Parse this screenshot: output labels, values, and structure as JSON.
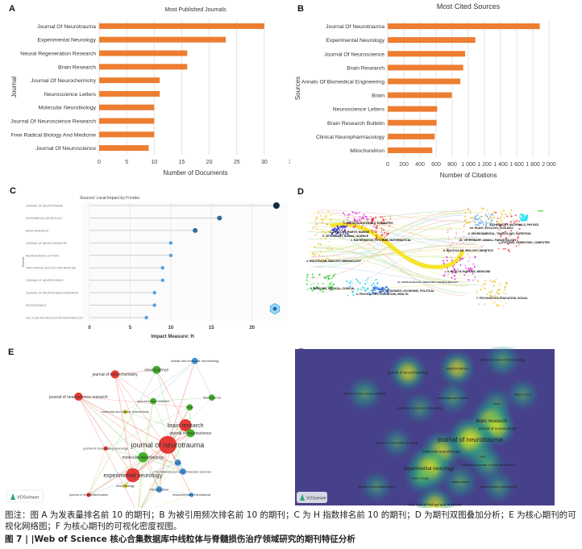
{
  "colors": {
    "bar_orange": "#ed7d31",
    "lollipop_dark": "#132b43",
    "lollipop_mid": "#2d6aa0",
    "lollipop_light": "#56a0dd",
    "cluster_red": "#e53935",
    "cluster_green": "#43b02a",
    "cluster_blue": "#3f8fd8",
    "cluster_yellow": "#c8cc1e",
    "density_bg": "#46418a",
    "density_peak": "#f5e61d"
  },
  "chart_data": [
    {
      "id": "A",
      "panel_label": "A",
      "type": "bar",
      "orientation": "horizontal",
      "title": "Most Published Journals",
      "xlabel": "Number of Documents",
      "ylabel": "Journal",
      "xlim": [
        0,
        35
      ],
      "xticks": [
        "0",
        "5",
        "10",
        "15",
        "20",
        "25",
        "30",
        "35"
      ],
      "grid": true,
      "categories": [
        "Journal Of Neurotrauma",
        "Experimental Neurology",
        "Neural Regeneration Research",
        "Brain Research",
        "Journal Of Neurochemistry",
        "Neuroscience Letters",
        "Molecular Neurobiology",
        "Journal Of Neuroscience Research",
        "Free Radical Biology And Medicine",
        "Journal Of Neuroscience"
      ],
      "values": [
        30,
        23,
        16,
        16,
        11,
        11,
        10,
        10,
        10,
        9
      ]
    },
    {
      "id": "B",
      "panel_label": "B",
      "type": "bar",
      "orientation": "horizontal",
      "title": "Most Cited Sources",
      "xlabel": "Number of Citations",
      "ylabel": "Sources",
      "xlim": [
        0,
        2000
      ],
      "xticks": [
        "0",
        "200",
        "400",
        "600",
        "800",
        "1 000",
        "1 200",
        "1 400",
        "1 600",
        "1 800",
        "2 000"
      ],
      "grid": true,
      "categories": [
        "Journal Of Neurotrauma",
        "Experimental Neurology",
        "Journal Of Neuroscience",
        "Brain Research",
        "Annals Of Biomedical Engineering",
        "Brain",
        "Neuroscience Letters",
        "Brain Research Bulletin",
        "Clinical Neuropharmacology",
        "Mitochondrion"
      ],
      "values": [
        1886,
        1086,
        960,
        936,
        900,
        795,
        613,
        606,
        583,
        553
      ]
    },
    {
      "id": "C",
      "panel_label": "C",
      "type": "lollipop",
      "title": "Sources' Local Impact by H index",
      "xlabel": "Impact Measure: H",
      "ylabel": "Sources",
      "xlim": [
        0,
        24
      ],
      "xticks": [
        "0",
        "5",
        "10",
        "15",
        "20"
      ],
      "grid": true,
      "categories": [
        "JOURNAL OF NEUROTRAUMA",
        "EXPERIMENTAL NEUROLOGY",
        "BRAIN RESEARCH",
        "JOURNAL OF NEUROCHEMISTRY",
        "NEUROSCIENCE LETTERS",
        "FREE RADICAL BIOLOGY AND MEDICINE",
        "JOURNAL OF NEUROSCIENCE",
        "JOURNAL OF NEUROSCIENCE RESEARCH",
        "NEUROSIGNALS",
        "CELLULAR AND MOLECULAR NEUROBIOLOGY"
      ],
      "values": [
        23,
        16,
        13,
        10,
        10,
        9,
        9,
        8,
        8,
        7
      ]
    },
    {
      "id": "D",
      "panel_label": "D",
      "type": "dual-map overlay",
      "left_clusters": [
        {
          "label": "1. PHYSICS, MATERIALS, CHEMISTRY",
          "color": "#e020e0"
        },
        {
          "label": "3. ECOLOGY, EARTH, MARINE",
          "color": "#2020d0"
        },
        {
          "label": "5. VETERINARY, ANIMAL, SCIENCE",
          "color": "#8844dd"
        },
        {
          "label": "1. MATHEMATICS, SYSTEMS, MATHEMATICAL",
          "color": "#ee3333"
        },
        {
          "label": "4. MOLECULAR, BIOLOGY, IMMUNOLOGY",
          "color": "#f0c020"
        },
        {
          "label": "6. MEDICINE, MEDICAL, CLINICAL",
          "color": "#20cc20"
        },
        {
          "label": "10. ECONOMICS, ECONOMIC, POLITICAL",
          "color": "#2266dd"
        },
        {
          "label": "6. PSYCHOLOGY, EDUCATION, HEALTH",
          "color": "#22ccee"
        }
      ],
      "right_clusters": [
        {
          "label": "4. CHEMISTRY, MATERIALS, PHYSICS",
          "color": "#f0c020"
        },
        {
          "label": "10. PLANT, ECOLOGY, ZOOLOGY",
          "color": "#2266dd"
        },
        {
          "label": "2. ENVIRONMENTAL, TOXICOLOGY, NUTRITION",
          "color": "#22cc22"
        },
        {
          "label": "11. VETERINARY, ANIMAL, PARASITOLOGY",
          "color": "#cc8833"
        },
        {
          "label": "1. SYSTEMS, COMPUTING, COMPUTER",
          "color": "#ee3333"
        },
        {
          "label": "8. MOLECULAR, BIOLOGY, GENETICS",
          "color": "#f0a020"
        },
        {
          "label": "5. HEALTH, NURSING, MEDICINE",
          "color": "#e020e0"
        },
        {
          "label": "7. PSYCHOLOGY, EDUCATION, SOCIAL",
          "color": "#e0c020"
        }
      ],
      "center_label": "10. OPHTHALMOLOGY, ONCOLOGY, OPHTHALMOLOGY"
    },
    {
      "id": "E",
      "panel_label": "E",
      "type": "network",
      "watermark": "VOSviewer",
      "nodes": [
        {
          "label": "cellular and molecular neurobiology",
          "cluster": "blue",
          "weight": 2
        },
        {
          "label": "journal of neurochemistry",
          "cluster": "red",
          "weight": 3
        },
        {
          "label": "neuroscience",
          "cluster": "green",
          "weight": 3
        },
        {
          "label": "journal of neuroscience research",
          "cluster": "red",
          "weight": 3
        },
        {
          "label": "neurochemical research",
          "cluster": "green",
          "weight": 2
        },
        {
          "label": "faseb journal",
          "cluster": "green",
          "weight": 2
        },
        {
          "label": "brain",
          "cluster": "green",
          "weight": 2
        },
        {
          "label": "molecular and cellular biochemistry",
          "cluster": "yellow",
          "weight": 1
        },
        {
          "label": "brain research",
          "cluster": "red",
          "weight": 5
        },
        {
          "label": "journal of neuroscience",
          "cluster": "green",
          "weight": 3
        },
        {
          "label": "journal of neurotrauma",
          "cluster": "red",
          "weight": 8
        },
        {
          "label": "journal of comparative neurology",
          "cluster": "red",
          "weight": 1
        },
        {
          "label": "molecular neurobiology",
          "cluster": "green",
          "weight": 4
        },
        {
          "label": "experimental neurology",
          "cluster": "red",
          "weight": 6
        },
        {
          "label": "cells",
          "cluster": "blue",
          "weight": 2
        },
        {
          "label": "redox biology",
          "cluster": "yellow",
          "weight": 1
        },
        {
          "label": "international journal of molecular sciences",
          "cluster": "blue",
          "weight": 2
        },
        {
          "label": "mitochondrion",
          "cluster": "blue",
          "weight": 2
        },
        {
          "label": "journal of neuroinflammation",
          "cluster": "red",
          "weight": 1
        },
        {
          "label": "neurochemistry international",
          "cluster": "blue",
          "weight": 1
        },
        {
          "label": "free radical biology and medicine",
          "cluster": "yellow",
          "weight": 3
        }
      ]
    },
    {
      "id": "F",
      "panel_label": "F",
      "type": "density",
      "watermark": "VOSviewer",
      "nodes": [
        {
          "label": "cellular and molecular neurobiology",
          "density": 0.55
        },
        {
          "label": "journal of neurochemistry",
          "density": 0.65
        },
        {
          "label": "neuroscience",
          "density": 0.6
        },
        {
          "label": "journal of neuroscience research",
          "density": 0.55
        },
        {
          "label": "neurochemical research",
          "density": 0.45
        },
        {
          "label": "faseb journal",
          "density": 0.45
        },
        {
          "label": "brain",
          "density": 0.45
        },
        {
          "label": "molecular and cellular biochemistry",
          "density": 0.4
        },
        {
          "label": "brain research",
          "density": 0.85
        },
        {
          "label": "journal of neuroscience",
          "density": 0.6
        },
        {
          "label": "journal of neurotrauma",
          "density": 1.0
        },
        {
          "label": "journal of comparative neurology",
          "density": 0.4
        },
        {
          "label": "molecular neurobiology",
          "density": 0.75
        },
        {
          "label": "experimental neurology",
          "density": 0.95
        },
        {
          "label": "cells",
          "density": 0.45
        },
        {
          "label": "redox biology",
          "density": 0.45
        },
        {
          "label": "international journal of molecular sciences",
          "density": 0.5
        },
        {
          "label": "mitochondrion",
          "density": 0.55
        },
        {
          "label": "journal of neuroinflammation",
          "density": 0.4
        },
        {
          "label": "neurochemistry international",
          "density": 0.45
        },
        {
          "label": "free radical biology and medicine",
          "density": 0.65
        }
      ]
    }
  ],
  "caption": {
    "note": "图注：图 A 为发表量排名前 10 的期刊；B 为被引用频次排名前 10 的期刊；C 为 H 指数排名前 10 的期刊；D 为期刊双图叠加分析；E 为核心期刊的可视化网络图；F 为核心期刊的可视化密度视图。",
    "title": "图 7 | |Web of Science 核心合集数据库中线粒体与脊髓损伤治疗领域研究的期刊特征分析"
  }
}
